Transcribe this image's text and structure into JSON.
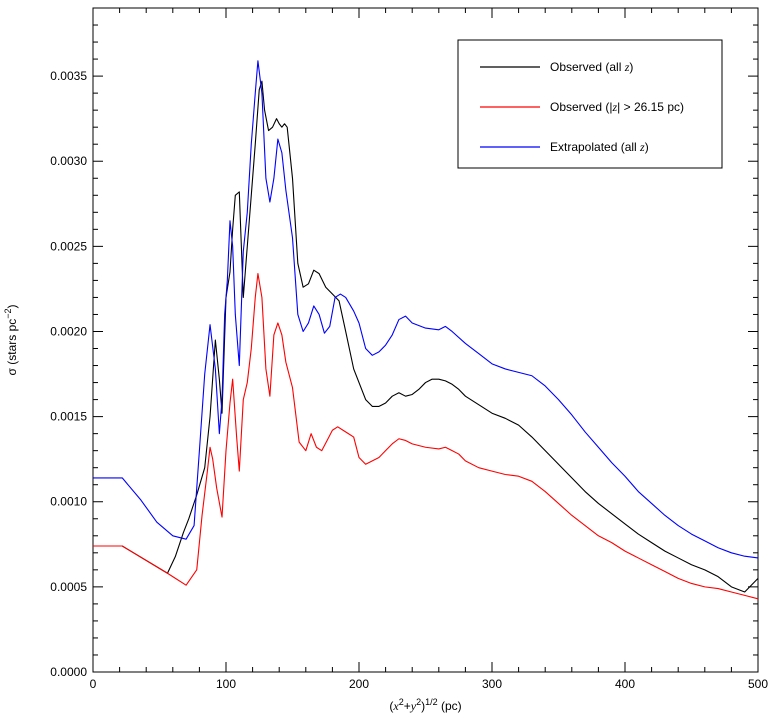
{
  "chart_data": {
    "type": "line",
    "title": "",
    "xlabel": {
      "prefix": "(",
      "x": "x",
      "plus": "+",
      "y": "y",
      "exp": "2",
      "close": ")",
      "pow": "1/2",
      "unit": " (pc)"
    },
    "ylabel": {
      "main": "σ (stars pc",
      "exp": "−2",
      "close": ")"
    },
    "xlim": [
      0,
      500
    ],
    "ylim": [
      0,
      0.0039
    ],
    "x_ticks": [
      0,
      100,
      200,
      300,
      400,
      500
    ],
    "x_tick_labels": [
      "0",
      "100",
      "200",
      "300",
      "400",
      "500"
    ],
    "y_ticks": [
      0,
      0.0005,
      0.001,
      0.0015,
      0.002,
      0.0025,
      0.003,
      0.0035
    ],
    "y_tick_labels": [
      "0.0000",
      "0.0005",
      "0.0010",
      "0.0015",
      "0.0020",
      "0.0025",
      "0.0030",
      "0.0035"
    ],
    "grid": false,
    "legend_position": "top-right",
    "series": [
      {
        "name": "Observed (all z)",
        "legend_parts": [
          "Observed (all ",
          "z",
          ")"
        ],
        "color": "#000000",
        "x": [
          0,
          22,
          56,
          62,
          68,
          72,
          78,
          84,
          88,
          92,
          95,
          97,
          100,
          103,
          105,
          107,
          110,
          113,
          116,
          119,
          122,
          125,
          127,
          129,
          132,
          135,
          138,
          140,
          142,
          144,
          146,
          150,
          154,
          158,
          162,
          166,
          170,
          175,
          180,
          185,
          190,
          196,
          200,
          205,
          210,
          215,
          220,
          225,
          230,
          235,
          240,
          245,
          250,
          255,
          260,
          265,
          270,
          275,
          280,
          290,
          300,
          310,
          320,
          330,
          340,
          350,
          360,
          370,
          380,
          390,
          400,
          410,
          420,
          430,
          440,
          450,
          460,
          470,
          480,
          490,
          500
        ],
        "y": [
          0.00074,
          0.00074,
          0.00058,
          0.00068,
          0.00082,
          0.0009,
          0.00104,
          0.0012,
          0.0015,
          0.00195,
          0.00172,
          0.00152,
          0.0022,
          0.00235,
          0.0026,
          0.0028,
          0.00282,
          0.0022,
          0.0025,
          0.0028,
          0.0031,
          0.00342,
          0.00347,
          0.0033,
          0.00318,
          0.0032,
          0.00325,
          0.00322,
          0.0032,
          0.00322,
          0.0032,
          0.0029,
          0.0024,
          0.00226,
          0.00228,
          0.00236,
          0.00234,
          0.00226,
          0.00222,
          0.00218,
          0.002,
          0.00178,
          0.0017,
          0.0016,
          0.00156,
          0.00156,
          0.00158,
          0.00162,
          0.00164,
          0.00162,
          0.00163,
          0.00166,
          0.0017,
          0.00172,
          0.00172,
          0.00171,
          0.00169,
          0.00166,
          0.00162,
          0.00157,
          0.00152,
          0.00149,
          0.00145,
          0.00138,
          0.0013,
          0.00122,
          0.00114,
          0.00106,
          0.00099,
          0.00093,
          0.00087,
          0.00081,
          0.00076,
          0.00071,
          0.00067,
          0.00063,
          0.0006,
          0.00056,
          0.0005,
          0.00047,
          0.00055
        ]
      },
      {
        "name": "Observed (|z| > 26.15 pc)",
        "legend_parts": [
          "Observed (|",
          "z",
          "| > 26.15 pc)"
        ],
        "color": "#ff0000",
        "x": [
          0,
          22,
          56,
          62,
          70,
          78,
          82,
          86,
          88,
          90,
          93,
          97,
          100,
          103,
          105,
          108,
          110,
          113,
          116,
          119,
          122,
          124,
          127,
          130,
          133,
          136,
          139,
          142,
          145,
          150,
          155,
          160,
          164,
          168,
          172,
          176,
          180,
          184,
          188,
          192,
          196,
          200,
          205,
          210,
          215,
          220,
          225,
          230,
          235,
          240,
          250,
          260,
          265,
          270,
          275,
          280,
          290,
          300,
          310,
          320,
          330,
          340,
          350,
          360,
          370,
          380,
          390,
          400,
          410,
          420,
          430,
          440,
          450,
          460,
          470,
          480,
          490,
          500
        ],
        "y": [
          0.00074,
          0.00074,
          0.00058,
          0.00055,
          0.00051,
          0.0006,
          0.00092,
          0.00118,
          0.00132,
          0.00125,
          0.00108,
          0.00091,
          0.0013,
          0.00158,
          0.00172,
          0.00138,
          0.00118,
          0.0016,
          0.0017,
          0.0019,
          0.0022,
          0.00234,
          0.0022,
          0.00178,
          0.00162,
          0.00198,
          0.00205,
          0.00198,
          0.00182,
          0.00167,
          0.00135,
          0.0013,
          0.0014,
          0.00132,
          0.0013,
          0.00136,
          0.00142,
          0.00144,
          0.00142,
          0.0014,
          0.00138,
          0.00126,
          0.00122,
          0.00124,
          0.00126,
          0.0013,
          0.00134,
          0.00137,
          0.00136,
          0.00134,
          0.00132,
          0.00131,
          0.00132,
          0.0013,
          0.00128,
          0.00124,
          0.0012,
          0.00118,
          0.00116,
          0.00115,
          0.00112,
          0.00106,
          0.00099,
          0.00092,
          0.00086,
          0.0008,
          0.00076,
          0.00071,
          0.00067,
          0.00063,
          0.00059,
          0.00055,
          0.00052,
          0.0005,
          0.00049,
          0.00047,
          0.00045,
          0.00043
        ]
      },
      {
        "name": "Extrapolated (all z)",
        "legend_parts": [
          "Extrapolated (all ",
          "z",
          ")"
        ],
        "color": "#0000ff",
        "x": [
          0,
          22,
          36,
          48,
          60,
          70,
          76,
          80,
          84,
          88,
          92,
          95,
          97,
          99,
          101,
          103,
          105,
          107,
          110,
          113,
          116,
          119,
          122,
          124,
          127,
          130,
          133,
          136,
          139,
          142,
          145,
          150,
          154,
          158,
          162,
          166,
          170,
          174,
          178,
          182,
          186,
          190,
          196,
          200,
          205,
          210,
          215,
          220,
          225,
          230,
          235,
          240,
          250,
          260,
          265,
          270,
          280,
          290,
          300,
          310,
          320,
          330,
          340,
          350,
          360,
          370,
          380,
          390,
          400,
          410,
          420,
          430,
          440,
          450,
          460,
          470,
          480,
          490,
          500
        ],
        "y": [
          0.00114,
          0.00114,
          0.00101,
          0.00088,
          0.0008,
          0.00078,
          0.00086,
          0.0013,
          0.00175,
          0.00204,
          0.00178,
          0.0014,
          0.0016,
          0.0021,
          0.0023,
          0.00265,
          0.0025,
          0.0021,
          0.0018,
          0.00247,
          0.0027,
          0.0031,
          0.0034,
          0.00359,
          0.0034,
          0.0029,
          0.00276,
          0.0029,
          0.00313,
          0.00305,
          0.00283,
          0.00255,
          0.0021,
          0.002,
          0.00205,
          0.00215,
          0.0021,
          0.00199,
          0.00203,
          0.0022,
          0.00222,
          0.0022,
          0.00212,
          0.00205,
          0.0019,
          0.00186,
          0.00188,
          0.00192,
          0.00198,
          0.00207,
          0.00209,
          0.00205,
          0.00202,
          0.00201,
          0.00203,
          0.002,
          0.00193,
          0.00187,
          0.00181,
          0.00178,
          0.00176,
          0.00174,
          0.00168,
          0.0016,
          0.00151,
          0.00141,
          0.00132,
          0.00123,
          0.00115,
          0.00106,
          0.00099,
          0.00092,
          0.00086,
          0.00081,
          0.00077,
          0.00073,
          0.0007,
          0.00068,
          0.00067
        ]
      }
    ]
  }
}
